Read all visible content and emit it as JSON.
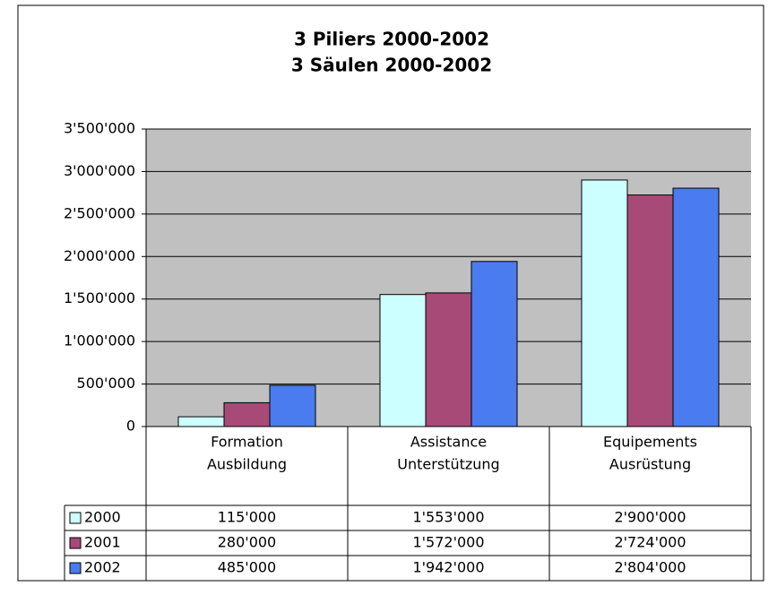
{
  "chart_data": {
    "type": "bar",
    "title": [
      "3 Piliers 2000-2002",
      "3 Säulen 2000-2002"
    ],
    "categories": [
      [
        "Formation",
        "Ausbildung"
      ],
      [
        "Assistance",
        "Unterstützung"
      ],
      [
        "Equipements",
        "Ausrüstung"
      ]
    ],
    "series": [
      {
        "name": "2000",
        "color": "#ccffff",
        "values": [
          115000,
          1553000,
          2900000
        ],
        "value_labels": [
          "115'000",
          "1'553'000",
          "2'900'000"
        ]
      },
      {
        "name": "2001",
        "color": "#a84a78",
        "values": [
          280000,
          1572000,
          2724000
        ],
        "value_labels": [
          "280'000",
          "1'572'000",
          "2'724'000"
        ]
      },
      {
        "name": "2002",
        "color": "#4a7bef",
        "values": [
          485000,
          1942000,
          2804000
        ],
        "value_labels": [
          "485'000",
          "1'942'000",
          "2'804'000"
        ]
      }
    ],
    "ylim": [
      0,
      3500000
    ],
    "yticks": [
      0,
      {
        "value": 500000,
        "label": "500'000"
      },
      {
        "value": 1000000,
        "label": "1'000'000"
      },
      {
        "value": 1500000,
        "label": "1'500'000"
      },
      {
        "value": 2000000,
        "label": "2'000'000"
      },
      {
        "value": 2500000,
        "label": "2'500'000"
      },
      {
        "value": 3000000,
        "label": "3'000'000"
      },
      {
        "value": 3500000,
        "label": "3'500'000"
      }
    ],
    "grid": true
  }
}
